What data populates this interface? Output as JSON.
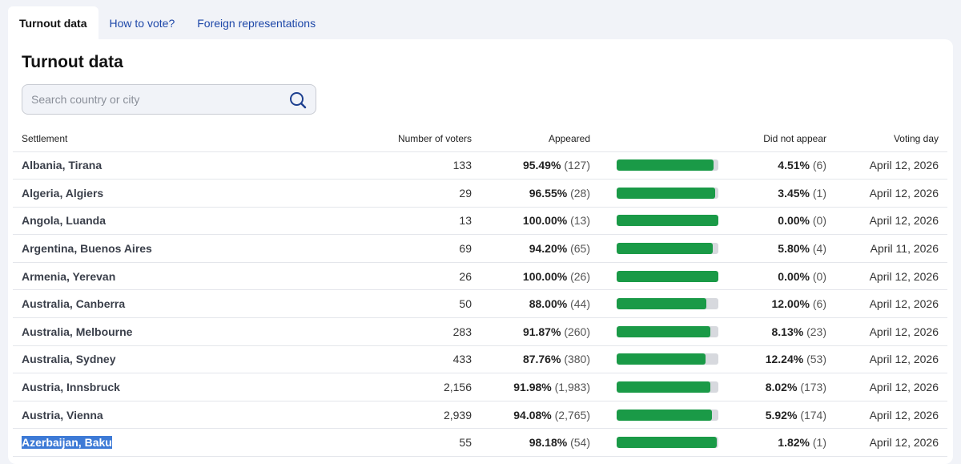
{
  "tabs": [
    {
      "label": "Turnout data",
      "active": true
    },
    {
      "label": "How to vote?",
      "active": false
    },
    {
      "label": "Foreign representations",
      "active": false
    }
  ],
  "page": {
    "title": "Turnout data"
  },
  "search": {
    "placeholder": "Search country or city",
    "value": ""
  },
  "table": {
    "headers": {
      "settlement": "Settlement",
      "voters": "Number of voters",
      "appeared": "Appeared",
      "did_not_appear": "Did not appear",
      "voting_day": "Voting day"
    },
    "rows": [
      {
        "settlement": "Albania, Tirana",
        "voters": "133",
        "appeared_pct": "95.49%",
        "appeared_count": "(127)",
        "dna_pct": "4.51%",
        "dna_count": "(6)",
        "day": "April 12, 2026",
        "fill": 0.9549
      },
      {
        "settlement": "Algeria, Algiers",
        "voters": "29",
        "appeared_pct": "96.55%",
        "appeared_count": "(28)",
        "dna_pct": "3.45%",
        "dna_count": "(1)",
        "day": "April 12, 2026",
        "fill": 0.9655
      },
      {
        "settlement": "Angola, Luanda",
        "voters": "13",
        "appeared_pct": "100.00%",
        "appeared_count": "(13)",
        "dna_pct": "0.00%",
        "dna_count": "(0)",
        "day": "April 12, 2026",
        "fill": 1.0
      },
      {
        "settlement": "Argentina, Buenos Aires",
        "voters": "69",
        "appeared_pct": "94.20%",
        "appeared_count": "(65)",
        "dna_pct": "5.80%",
        "dna_count": "(4)",
        "day": "April 11, 2026",
        "fill": 0.942
      },
      {
        "settlement": "Armenia, Yerevan",
        "voters": "26",
        "appeared_pct": "100.00%",
        "appeared_count": "(26)",
        "dna_pct": "0.00%",
        "dna_count": "(0)",
        "day": "April 12, 2026",
        "fill": 1.0
      },
      {
        "settlement": "Australia, Canberra",
        "voters": "50",
        "appeared_pct": "88.00%",
        "appeared_count": "(44)",
        "dna_pct": "12.00%",
        "dna_count": "(6)",
        "day": "April 12, 2026",
        "fill": 0.88
      },
      {
        "settlement": "Australia, Melbourne",
        "voters": "283",
        "appeared_pct": "91.87%",
        "appeared_count": "(260)",
        "dna_pct": "8.13%",
        "dna_count": "(23)",
        "day": "April 12, 2026",
        "fill": 0.9187
      },
      {
        "settlement": "Australia, Sydney",
        "voters": "433",
        "appeared_pct": "87.76%",
        "appeared_count": "(380)",
        "dna_pct": "12.24%",
        "dna_count": "(53)",
        "day": "April 12, 2026",
        "fill": 0.8776
      },
      {
        "settlement": "Austria, Innsbruck",
        "voters": "2,156",
        "appeared_pct": "91.98%",
        "appeared_count": "(1,983)",
        "dna_pct": "8.02%",
        "dna_count": "(173)",
        "day": "April 12, 2026",
        "fill": 0.9198
      },
      {
        "settlement": "Austria, Vienna",
        "voters": "2,939",
        "appeared_pct": "94.08%",
        "appeared_count": "(2,765)",
        "dna_pct": "5.92%",
        "dna_count": "(174)",
        "day": "April 12, 2026",
        "fill": 0.9408
      },
      {
        "settlement": "Azerbaijan, Baku",
        "voters": "55",
        "appeared_pct": "98.18%",
        "appeared_count": "(54)",
        "dna_pct": "1.82%",
        "dna_count": "(1)",
        "day": "April 12, 2026",
        "fill": 0.9818,
        "selected": true
      }
    ]
  },
  "colors": {
    "bar_fill": "#1a9a47",
    "bar_track": "#d7d9de",
    "tab_link": "#1d47a8",
    "selection": "#3d7ad6"
  },
  "icons": {
    "search": "search-icon"
  }
}
